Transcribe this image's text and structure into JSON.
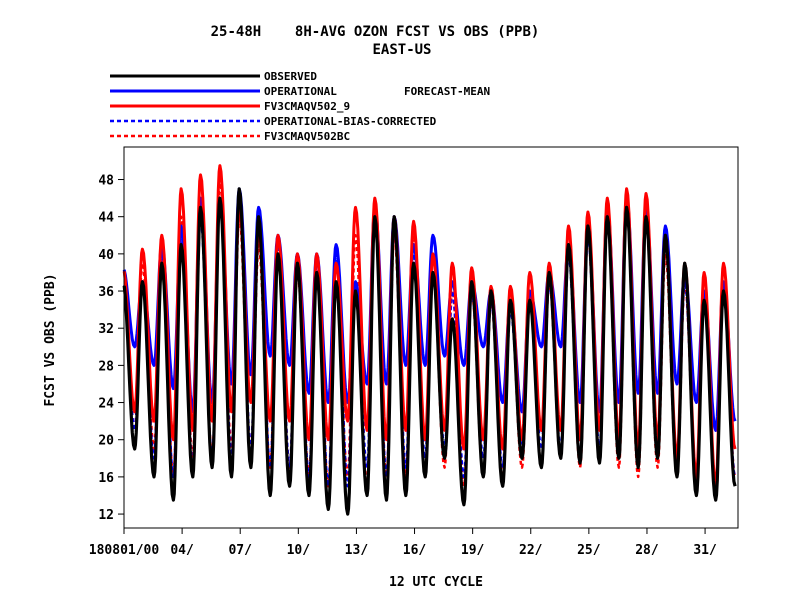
{
  "title_line1": "25-48H    8H-AVG OZON FCST VS OBS (PPB)",
  "title_line2": "EAST-US",
  "legend_note": "FORECAST-MEAN",
  "colors": {
    "observed": "#000000",
    "operational": "#0000ff",
    "fv3": "#ff0000",
    "op_bc": "#0000ff",
    "fv3_bc": "#ff0000"
  },
  "chart_data": {
    "type": "line",
    "title": "25-48H    8H-AVG OZON FCST VS OBS (PPB)",
    "subtitle": "EAST-US",
    "xlabel": "12 UTC CYCLE",
    "ylabel": "FCST VS OBS (PPB)",
    "ylim": [
      10.5,
      51.5
    ],
    "xlim": [
      0,
      31.7
    ],
    "y_ticks": [
      12,
      16,
      20,
      24,
      28,
      32,
      36,
      40,
      44,
      48
    ],
    "x_ticks": [
      {
        "x": 0,
        "label": "180801/00"
      },
      {
        "x": 3,
        "label": "04/"
      },
      {
        "x": 6,
        "label": "07/"
      },
      {
        "x": 9,
        "label": "10/"
      },
      {
        "x": 12,
        "label": "13/"
      },
      {
        "x": 15,
        "label": "16/"
      },
      {
        "x": 18,
        "label": "19/"
      },
      {
        "x": 21,
        "label": "22/"
      },
      {
        "x": 24,
        "label": "25/"
      },
      {
        "x": 27,
        "label": "28/"
      },
      {
        "x": 30,
        "label": "31/"
      }
    ],
    "grid": false,
    "legend_position": "top-left",
    "daily": {
      "days": [
        0,
        1,
        2,
        3,
        4,
        5,
        6,
        7,
        8,
        9,
        10,
        11,
        12,
        13,
        14,
        15,
        16,
        17,
        18,
        19,
        20,
        21,
        22,
        23,
        24,
        25,
        26,
        27,
        28,
        29,
        30,
        31
      ],
      "observed_max": [
        37,
        37,
        39,
        41,
        45,
        46,
        47,
        44,
        40,
        39,
        38,
        37,
        36,
        44,
        44,
        39,
        38,
        33,
        37,
        36,
        35,
        35,
        38,
        41,
        43,
        44,
        45,
        44,
        42,
        39,
        35,
        36
      ],
      "observed_min": [
        19,
        16,
        13.5,
        16,
        17,
        16,
        17,
        14,
        15,
        14,
        12.5,
        12,
        14,
        13.5,
        14,
        16,
        18,
        13,
        16,
        15,
        18,
        17,
        18,
        17.5,
        17.5,
        18,
        17,
        18,
        16,
        14,
        13.5,
        15
      ],
      "operational_max": [
        38.5,
        37,
        41,
        43,
        46,
        46,
        47,
        45,
        42,
        40,
        40,
        41,
        37,
        45,
        44,
        41,
        42,
        37,
        37,
        36,
        35,
        36,
        38,
        41,
        43,
        45,
        46,
        45,
        43,
        38,
        36,
        37
      ],
      "operational_min": [
        30,
        28,
        25.5,
        23,
        24,
        26,
        27,
        29,
        28,
        25,
        24,
        24,
        26,
        26,
        28,
        28,
        29,
        28,
        30,
        24,
        23,
        30,
        30,
        24,
        23,
        24,
        25,
        25,
        26,
        24,
        21,
        22
      ],
      "fv3_max": [
        38.5,
        40.5,
        42,
        47,
        48.5,
        49.5,
        45,
        42.5,
        42,
        40,
        40,
        39,
        45,
        46,
        44,
        43.5,
        40,
        39,
        38.5,
        36.5,
        36.5,
        38,
        39,
        43,
        44.5,
        46,
        47,
        46.5,
        42,
        39,
        38,
        39
      ],
      "fv3_min": [
        23,
        22,
        20,
        21,
        22,
        23,
        24,
        22,
        22,
        20,
        20,
        22,
        21,
        20,
        21,
        20,
        21,
        19,
        20,
        19,
        20,
        21,
        21,
        20,
        21,
        20,
        19,
        20,
        18,
        16,
        15,
        19
      ],
      "op_bc_max": [
        37,
        37,
        40,
        42,
        44,
        46,
        46,
        43,
        41,
        39,
        39,
        40,
        36,
        44,
        43,
        40,
        40,
        36,
        36,
        35,
        34,
        35,
        37,
        40,
        42,
        44,
        45,
        44,
        42,
        37,
        35,
        36
      ],
      "op_bc_min": [
        21,
        18,
        16,
        17,
        18,
        18,
        19,
        17,
        17,
        16,
        15,
        15,
        17,
        16,
        17,
        18,
        19,
        16,
        18,
        17,
        19,
        19,
        19,
        18,
        19,
        19,
        18,
        19,
        17,
        16,
        15,
        16
      ],
      "fv3_bc_max": [
        37,
        39,
        40,
        44,
        46,
        48,
        44,
        41,
        40,
        38,
        38,
        37,
        42,
        44,
        42,
        42,
        38,
        36,
        36,
        35,
        35,
        36,
        37,
        41,
        42,
        44,
        45,
        44,
        40,
        37,
        36,
        37
      ],
      "fv3_bc_min": [
        21,
        19,
        16,
        18,
        18,
        19,
        19,
        17,
        17,
        16,
        15,
        16,
        15,
        16,
        16,
        16,
        17,
        15,
        16,
        16,
        17,
        17,
        18,
        17,
        18,
        17,
        16,
        17,
        16,
        15,
        14,
        16
      ]
    },
    "series": [
      {
        "name": "OBSERVED",
        "key": "observed",
        "dashed": false
      },
      {
        "name": "OPERATIONAL",
        "key": "operational",
        "dashed": false
      },
      {
        "name": "FV3CMAQV502_9",
        "key": "fv3",
        "dashed": false
      },
      {
        "name": "OPERATIONAL-BIAS-CORRECTED",
        "key": "op_bc",
        "dashed": true
      },
      {
        "name": "FV3CMAQV502BC",
        "key": "fv3_bc",
        "dashed": true
      }
    ]
  }
}
